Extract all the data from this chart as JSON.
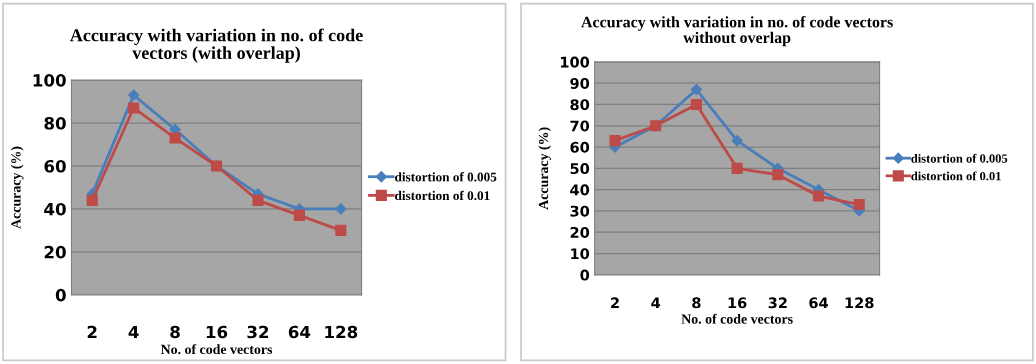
{
  "chart_data": [
    {
      "type": "line",
      "title": "Accuracy with variation in no. of code vectors (with overlap)",
      "xlabel": "No. of code vectors",
      "ylabel": "Accuracy (%)",
      "categories": [
        "2",
        "4",
        "8",
        "16",
        "32",
        "64",
        "128"
      ],
      "series": [
        {
          "name": "distortion of 0.005",
          "color": "#4a7ebb",
          "values": [
            47,
            93,
            77,
            60,
            47,
            40,
            40
          ],
          "marker": "diamond"
        },
        {
          "name": "distortion of 0.01",
          "color": "#be4b48",
          "values": [
            44,
            87,
            73,
            60,
            44,
            37,
            30
          ],
          "marker": "square"
        }
      ],
      "ylim": [
        0,
        100
      ],
      "yticks": [
        0,
        20,
        40,
        60,
        80,
        100
      ],
      "grid": "y",
      "legend": "right"
    },
    {
      "type": "line",
      "title": "Accuracy with variation in no. of code vectors without overlap",
      "xlabel": "No. of code vectors",
      "ylabel": "Accuracy (%)",
      "categories": [
        "2",
        "4",
        "8",
        "16",
        "32",
        "64",
        "128"
      ],
      "series": [
        {
          "name": "distortion of 0.005",
          "color": "#4a7ebb",
          "values": [
            60,
            70,
            87,
            63,
            50,
            40,
            30
          ],
          "marker": "diamond"
        },
        {
          "name": "distortion of 0.01",
          "color": "#be4b48",
          "values": [
            63,
            70,
            80,
            50,
            47,
            37,
            33
          ],
          "marker": "square"
        }
      ],
      "ylim": [
        0,
        100
      ],
      "yticks": [
        0,
        10,
        20,
        30,
        40,
        50,
        60,
        70,
        80,
        90,
        100
      ],
      "grid": "y",
      "legend": "right"
    }
  ]
}
